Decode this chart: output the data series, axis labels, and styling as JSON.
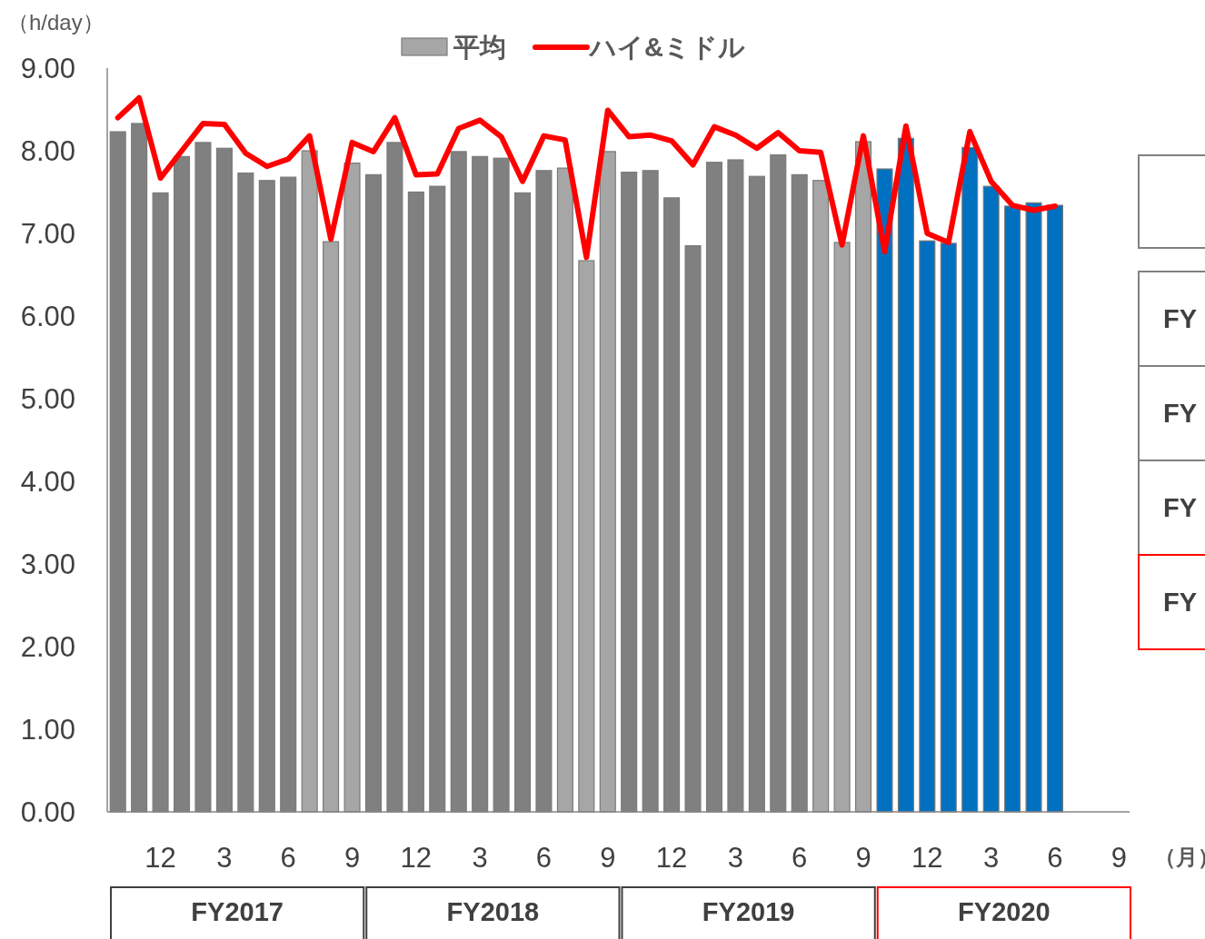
{
  "chart_data": {
    "type": "bar",
    "ylabel": "（h/day）",
    "xlabel": "（月）",
    "categories": [
      null,
      null,
      "12",
      null,
      null,
      "3",
      null,
      null,
      "6",
      null,
      null,
      "9",
      null,
      null,
      "12",
      null,
      null,
      "3",
      null,
      null,
      "6",
      null,
      null,
      "9",
      null,
      null,
      "12",
      null,
      null,
      "3",
      null,
      null,
      "6",
      null,
      null,
      "9",
      null,
      null,
      "12",
      null,
      null,
      "3",
      null,
      null,
      "6",
      null,
      null,
      "9"
    ],
    "series": [
      {
        "name": "平均",
        "type": "bar",
        "color": "#a6a6a6",
        "colors": [
          "#808080",
          "#808080",
          "#808080",
          "#808080",
          "#808080",
          "#808080",
          "#808080",
          "#808080",
          "#808080",
          "#a6a6a6",
          "#a6a6a6",
          "#a6a6a6",
          "#808080",
          "#808080",
          "#808080",
          "#808080",
          "#808080",
          "#808080",
          "#808080",
          "#808080",
          "#808080",
          "#a6a6a6",
          "#a6a6a6",
          "#a6a6a6",
          "#808080",
          "#808080",
          "#808080",
          "#808080",
          "#808080",
          "#808080",
          "#808080",
          "#808080",
          "#808080",
          "#a6a6a6",
          "#a6a6a6",
          "#a6a6a6",
          "#0070c0",
          "#0070c0",
          "#0070c0",
          "#0070c0",
          "#0070c0",
          "#0070c0",
          "#0070c0",
          "#0070c0",
          "#0070c0",
          null,
          null,
          null
        ],
        "values": [
          8.23,
          8.33,
          7.49,
          7.93,
          8.1,
          8.03,
          7.73,
          7.64,
          7.68,
          8.0,
          6.9,
          7.85,
          7.71,
          8.1,
          7.5,
          7.57,
          7.99,
          7.93,
          7.91,
          7.49,
          7.76,
          7.79,
          6.67,
          7.99,
          7.74,
          7.76,
          7.43,
          6.85,
          7.86,
          7.89,
          7.69,
          7.95,
          7.71,
          7.64,
          6.89,
          8.11,
          7.78,
          8.15,
          6.91,
          6.88,
          8.04,
          7.57,
          7.33,
          7.37,
          7.34,
          null,
          null,
          null
        ]
      },
      {
        "name": "ハイ&ミドル",
        "type": "line",
        "color": "#ff0000",
        "values": [
          8.4,
          8.64,
          7.67,
          8.0,
          8.33,
          8.32,
          7.97,
          7.81,
          7.9,
          8.18,
          6.93,
          8.1,
          7.99,
          8.4,
          7.71,
          7.72,
          8.27,
          8.37,
          8.17,
          7.63,
          8.18,
          8.13,
          6.71,
          8.49,
          8.17,
          8.19,
          8.12,
          7.83,
          8.29,
          8.19,
          8.03,
          8.22,
          8.0,
          7.98,
          6.86,
          8.18,
          6.78,
          8.3,
          7.0,
          6.89,
          8.23,
          7.63,
          7.34,
          7.28,
          7.33,
          null,
          null,
          null
        ]
      }
    ],
    "ylim": [
      0,
      9
    ],
    "yticks": [
      {
        "value": 0,
        "label": "0.00"
      },
      {
        "value": 1,
        "label": "1.00"
      },
      {
        "value": 2,
        "label": "2.00"
      },
      {
        "value": 3,
        "label": "3.00"
      },
      {
        "value": 4,
        "label": "4.00"
      },
      {
        "value": 5,
        "label": "5.00"
      },
      {
        "value": 6,
        "label": "6.00"
      },
      {
        "value": 7,
        "label": "7.00"
      },
      {
        "value": 8,
        "label": "8.00"
      },
      {
        "value": 9,
        "label": "9.00"
      }
    ],
    "grid": false,
    "legend": "top",
    "annotations": [
      "FY2017",
      "FY2018",
      "FY2019",
      "FY2020",
      "FY",
      "FY",
      "FY",
      "FY"
    ]
  }
}
